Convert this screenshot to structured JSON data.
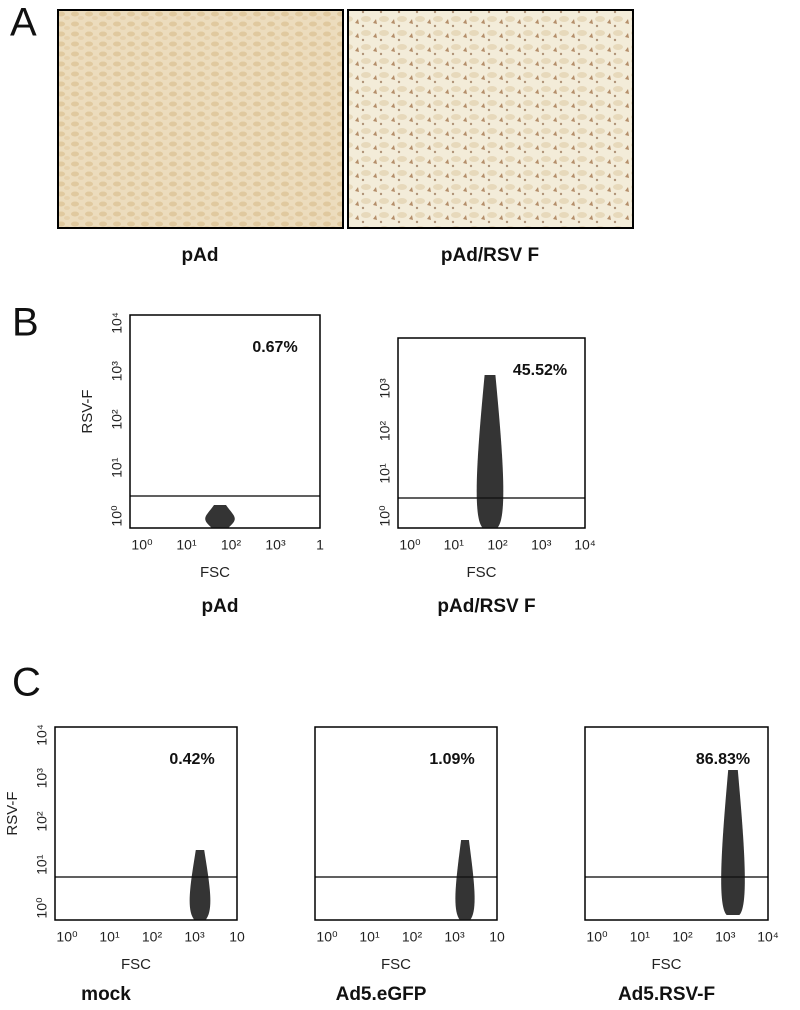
{
  "panels": [
    {
      "label": "A",
      "images": [
        {
          "caption": "pAd"
        },
        {
          "caption": "pAd/RSV F"
        }
      ]
    },
    {
      "label": "B",
      "plots": [
        {
          "y_label": "RSV-F",
          "x_label": "FSC",
          "percent": "0.67%",
          "caption": "pAd",
          "x_ticks": [
            "10⁰",
            "10¹",
            "10²",
            "10³",
            "1"
          ],
          "y_ticks": [
            "10⁰",
            "10¹",
            "10²",
            "10³",
            "10⁴"
          ]
        },
        {
          "x_label": "FSC",
          "percent": "45.52%",
          "caption": "pAd/RSV F",
          "x_ticks": [
            "10⁰",
            "10¹",
            "10²",
            "10³",
            "10⁴"
          ],
          "y_ticks": [
            "10⁰",
            "10¹",
            "10²",
            "10³"
          ]
        }
      ]
    },
    {
      "label": "C",
      "plots": [
        {
          "y_label": "RSV-F",
          "x_label": "FSC",
          "percent": "0.42%",
          "caption": "mock",
          "x_ticks": [
            "10⁰",
            "10¹",
            "10²",
            "10³",
            "10"
          ],
          "y_ticks": [
            "10⁰",
            "10¹",
            "10²",
            "10³",
            "10⁴"
          ]
        },
        {
          "x_label": "FSC",
          "percent": "1.09%",
          "caption": "Ad5.eGFP",
          "x_ticks": [
            "10⁰",
            "10¹",
            "10²",
            "10³",
            "10"
          ],
          "y_ticks": []
        },
        {
          "x_label": "FSC",
          "percent": "86.83%",
          "caption": "Ad5.RSV-F",
          "x_ticks": [
            "10⁰",
            "10¹",
            "10²",
            "10³",
            "10⁴"
          ],
          "y_ticks": []
        }
      ]
    }
  ]
}
